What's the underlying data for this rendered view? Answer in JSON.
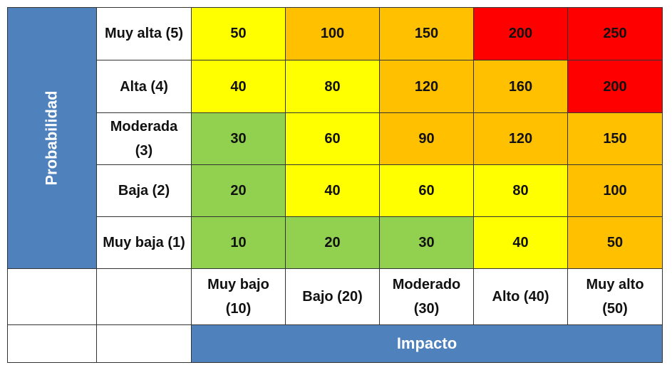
{
  "axes": {
    "y_title": "Probabilidad",
    "x_title": "Impacto"
  },
  "rows": [
    {
      "label": "Muy alta (5)",
      "values": [
        "50",
        "100",
        "150",
        "200",
        "250"
      ]
    },
    {
      "label": "Alta (4)",
      "values": [
        "40",
        "80",
        "120",
        "160",
        "200"
      ]
    },
    {
      "label": "Moderada (3)",
      "values": [
        "30",
        "60",
        "90",
        "120",
        "150"
      ]
    },
    {
      "label": "Baja (2)",
      "values": [
        "20",
        "40",
        "60",
        "80",
        "100"
      ]
    },
    {
      "label": "Muy baja (1)",
      "values": [
        "10",
        "20",
        "30",
        "40",
        "50"
      ]
    }
  ],
  "columns": [
    "Muy bajo (10)",
    "Bajo (20)",
    "Moderado (30)",
    "Alto (40)",
    "Muy alto (50)"
  ],
  "colors": {
    "header_blue": "#4f81bd",
    "green": "#92d050",
    "yellow": "#ffff00",
    "orange": "#ffc000",
    "red": "#ff0000"
  },
  "chart_data": {
    "type": "heatmap",
    "title": "",
    "xlabel": "Impacto",
    "ylabel": "Probabilidad",
    "x": [
      "Muy bajo (10)",
      "Bajo (20)",
      "Moderado (30)",
      "Alto (40)",
      "Muy alto (50)"
    ],
    "y": [
      "Muy alta (5)",
      "Alta (4)",
      "Moderada (3)",
      "Baja (2)",
      "Muy baja (1)"
    ],
    "values": [
      [
        50,
        100,
        150,
        200,
        250
      ],
      [
        40,
        80,
        120,
        160,
        200
      ],
      [
        30,
        60,
        90,
        120,
        150
      ],
      [
        20,
        40,
        60,
        80,
        100
      ],
      [
        10,
        20,
        30,
        40,
        50
      ]
    ],
    "cell_colors": [
      [
        "yellow",
        "orange",
        "orange",
        "red",
        "red"
      ],
      [
        "yellow",
        "yellow",
        "orange",
        "orange",
        "red"
      ],
      [
        "green",
        "yellow",
        "orange",
        "orange",
        "orange"
      ],
      [
        "green",
        "yellow",
        "yellow",
        "yellow",
        "orange"
      ],
      [
        "green",
        "green",
        "green",
        "yellow",
        "orange"
      ]
    ],
    "legend": [],
    "grid": true
  }
}
